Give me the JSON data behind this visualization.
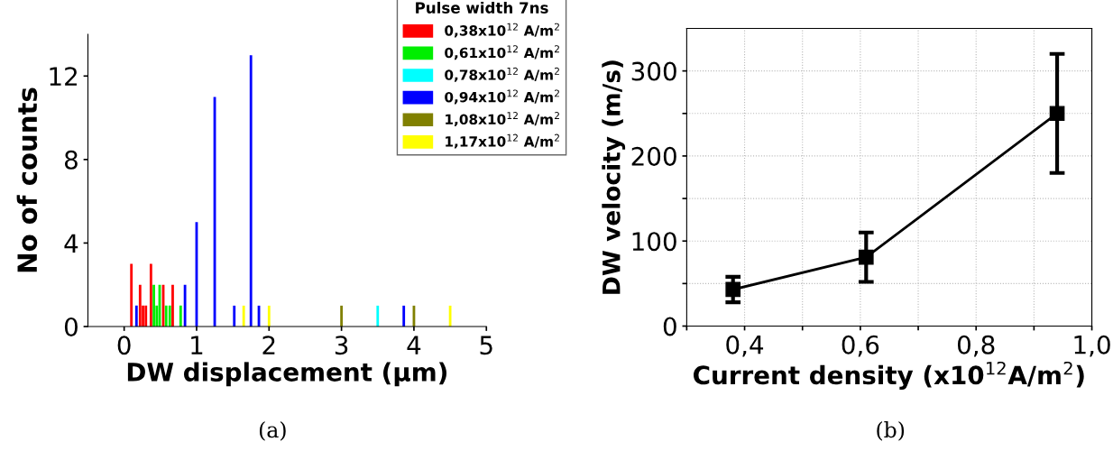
{
  "chart_data": [
    {
      "type": "bar",
      "xlabel": "DW displacement (µm)",
      "ylabel": "No of counts",
      "legend_title": "Pulse width 7ns",
      "series": [
        {
          "name": "0,38x10$^{12}$ A/m$^{2}$",
          "color": "#ff0000",
          "x": [
            0.1,
            0.22,
            0.26,
            0.3,
            0.37,
            0.54,
            0.67
          ],
          "values": [
            3,
            2,
            1,
            1,
            3,
            2,
            2
          ]
        },
        {
          "name": "0,61x10$^{12}$ A/m$^{2}$",
          "color": "#00ee00",
          "x": [
            0.41,
            0.45,
            0.49,
            0.58,
            0.63,
            0.78
          ],
          "values": [
            2,
            1,
            2,
            1,
            1,
            1
          ]
        },
        {
          "name": "0,78x10$^{12}$ A/m$^{2}$",
          "color": "#00ffff",
          "x": [
            3.5
          ],
          "values": [
            1
          ]
        },
        {
          "name": "0,94x10$^{12}$ A/m$^{2}$",
          "color": "#0000ff",
          "x": [
            0.17,
            0.84,
            1.0,
            1.25,
            1.52,
            1.75,
            1.86,
            3.86
          ],
          "values": [
            1,
            2,
            5,
            11,
            1,
            13,
            1,
            1
          ]
        },
        {
          "name": "1,08x10$^{12}$ A/m$^{2}$",
          "color": "#808000",
          "x": [
            3.0,
            4.0
          ],
          "values": [
            1,
            1
          ]
        },
        {
          "name": "1,17x10$^{12}$ A/m$^{2}$",
          "color": "#ffff00",
          "x": [
            1.65,
            2.0,
            4.5
          ],
          "values": [
            1,
            1,
            1
          ]
        }
      ],
      "xlim": [
        -0.5,
        5
      ],
      "xticks": [
        0,
        1,
        2,
        3,
        4,
        5
      ],
      "ylim": [
        0,
        14
      ],
      "yticks": [
        0,
        4,
        8,
        12
      ],
      "legend": "top right",
      "annotations": [
        "(a)"
      ]
    },
    {
      "type": "line",
      "xlabel": "Current density (x10$^{12}$A/m$^{2}$)",
      "ylabel": "DW velocity (m/s)",
      "series": [
        {
          "color": "#000000",
          "x": [
            0.38,
            0.61,
            0.94
          ],
          "values": [
            43,
            81,
            250
          ],
          "errors": [
            [
              28,
              58
            ],
            [
              52,
              110
            ],
            [
              180,
              320
            ]
          ]
        }
      ],
      "xlim": [
        0.3,
        1.0
      ],
      "xticks": [
        {
          "value": 0.3,
          "label": null
        },
        {
          "value": 0.4,
          "label": "0,4"
        },
        {
          "value": 0.5,
          "label": null
        },
        {
          "value": 0.6,
          "label": "0,6"
        },
        {
          "value": 0.7,
          "label": null
        },
        {
          "value": 0.8,
          "label": "0,8"
        },
        {
          "value": 0.9,
          "label": null
        },
        {
          "value": 1.0,
          "label": "1,0"
        }
      ],
      "ylim": [
        0,
        350
      ],
      "yticks": [
        0,
        {
          "value": 50,
          "label": null
        },
        100,
        {
          "value": 150,
          "label": null
        },
        200,
        {
          "value": 250,
          "label": null
        },
        300
      ],
      "grid": true,
      "marker": "square",
      "line_style": "solid",
      "annotations": [
        "(b)"
      ]
    }
  ]
}
